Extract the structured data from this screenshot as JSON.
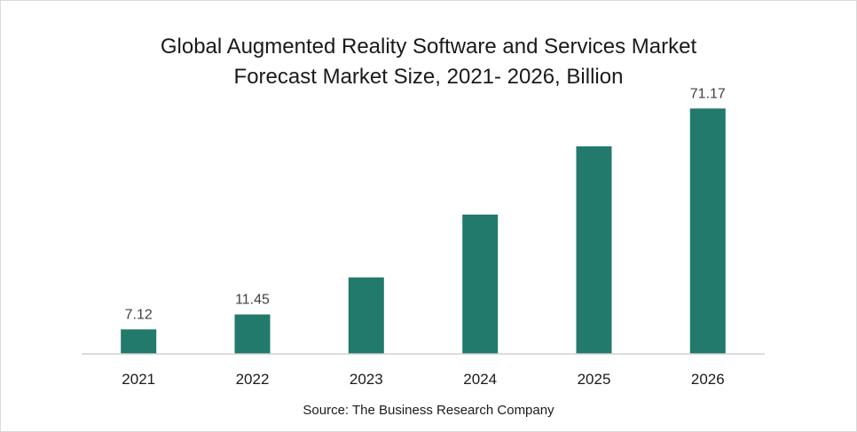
{
  "chart_data": {
    "type": "bar",
    "title_lines": [
      "Global Augmented Reality Software and Services Market",
      "Forecast Market Size, 2021- 2026, Billion"
    ],
    "categories": [
      "2021",
      "2022",
      "2023",
      "2024",
      "2025",
      "2026"
    ],
    "values": [
      7.12,
      11.45,
      22.2,
      40.4,
      60.2,
      71.17
    ],
    "data_labels": [
      "7.12",
      "11.45",
      "",
      "",
      "",
      "71.17"
    ],
    "ylim": [
      0,
      80
    ],
    "grid": false,
    "legend": "none",
    "bar_color": "#217a6b",
    "source": "Source: The Business Research Company"
  }
}
